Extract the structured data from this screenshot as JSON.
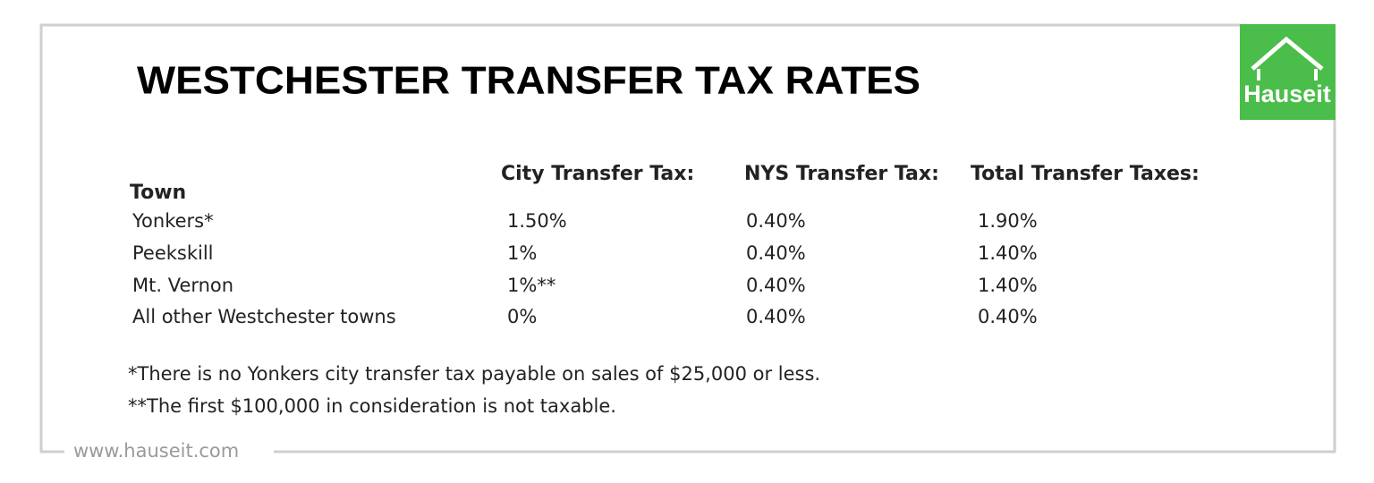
{
  "title": "WESTCHESTER TRANSFER TAX RATES",
  "logo": {
    "text": "Hauseit"
  },
  "table": {
    "headers": [
      "Town",
      "City Transfer Tax:",
      "NYS Transfer Tax:",
      "Total Transfer Taxes:"
    ],
    "rows": [
      [
        "Yonkers*",
        "1.50%",
        "0.40%",
        "1.90%"
      ],
      [
        "Peekskill",
        "1%",
        "0.40%",
        "1.40%"
      ],
      [
        "Mt. Vernon",
        "1%**",
        "0.40%",
        "1.40%"
      ],
      [
        "All other Westchester towns",
        "0%",
        "0.40%",
        "0.40%"
      ]
    ]
  },
  "footnotes": [
    "*There is no Yonkers city transfer tax payable on sales of $25,000 or less.",
    "**The first $100,000 in consideration is not taxable."
  ],
  "footer": {
    "website": "www.hauseit.com"
  }
}
